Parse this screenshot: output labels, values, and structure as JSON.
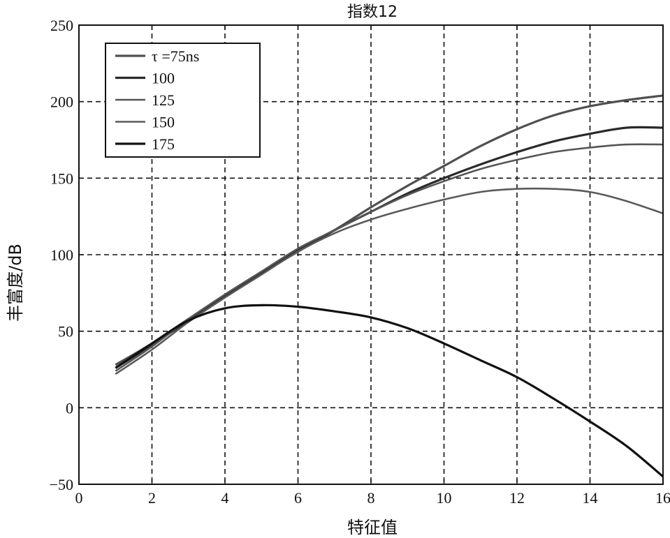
{
  "chart_data": {
    "type": "line",
    "title": "指数12",
    "xlabel": "特征值",
    "ylabel": "丰富度/dB",
    "xlim": [
      0,
      16
    ],
    "ylim": [
      -50,
      250
    ],
    "xticks": [
      0,
      2,
      4,
      6,
      8,
      10,
      12,
      14,
      16
    ],
    "yticks": [
      -50,
      0,
      50,
      100,
      150,
      200,
      250
    ],
    "xtick_labels": [
      "0",
      "2",
      "4",
      "6",
      "8",
      "10",
      "12",
      "14",
      "16"
    ],
    "ytick_labels": [
      "−50",
      "0",
      "50",
      "100",
      "150",
      "200",
      "250"
    ],
    "grid": true,
    "legend_position": "top-left",
    "series": [
      {
        "name": "τ =75ns",
        "color": "#505050",
        "x": [
          1,
          2,
          3,
          4,
          5,
          6,
          7,
          8,
          9,
          10,
          11,
          12,
          13,
          14,
          15,
          16
        ],
        "y": [
          28,
          42,
          58,
          73,
          88,
          102,
          116,
          131,
          145,
          158,
          171,
          182,
          191,
          197,
          201,
          204
        ]
      },
      {
        "name": "100",
        "color": "#2a2a2a",
        "x": [
          1,
          2,
          3,
          4,
          5,
          6,
          7,
          8,
          9,
          10,
          11,
          12,
          13,
          14,
          15,
          16
        ],
        "y": [
          26,
          41,
          57,
          73,
          88,
          103,
          116,
          128,
          140,
          150,
          159,
          167,
          174,
          179,
          183,
          183
        ]
      },
      {
        "name": "125",
        "color": "#555555",
        "x": [
          1,
          2,
          3,
          4,
          5,
          6,
          7,
          8,
          9,
          10,
          11,
          12,
          13,
          14,
          15,
          16
        ],
        "y": [
          24,
          40,
          58,
          74,
          89,
          104,
          116,
          128,
          139,
          148,
          156,
          162,
          167,
          170,
          172,
          172
        ]
      },
      {
        "name": "150",
        "color": "#5a5a5a",
        "x": [
          1,
          2,
          3,
          4,
          5,
          6,
          7,
          8,
          9,
          10,
          11,
          12,
          13,
          14,
          15,
          16
        ],
        "y": [
          22,
          38,
          56,
          72,
          87,
          102,
          114,
          123,
          130,
          136,
          141,
          143,
          143,
          141,
          135,
          127
        ]
      },
      {
        "name": "175",
        "color": "#111111",
        "x": [
          1,
          2,
          3,
          4,
          5,
          6,
          7,
          8,
          9,
          10,
          11,
          12,
          13,
          14,
          15,
          16
        ],
        "y": [
          26,
          42,
          57,
          65,
          67,
          66,
          63,
          59,
          52,
          42,
          31,
          20,
          6,
          -9,
          -25,
          -45
        ]
      }
    ]
  }
}
